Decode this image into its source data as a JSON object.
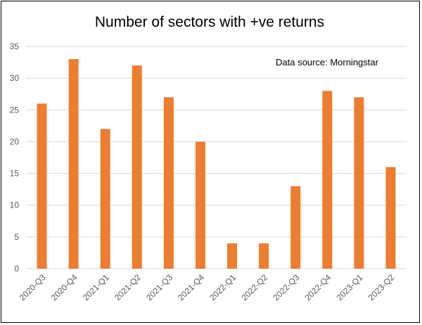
{
  "chart_data": {
    "type": "bar",
    "title": "Number of sectors with +ve returns",
    "annotation": "Data source: Morningstar",
    "xlabel": "",
    "ylabel": "",
    "categories": [
      "2020-Q3",
      "2020-Q4",
      "2021-Q1",
      "2021-Q2",
      "2021-Q3",
      "2021-Q4",
      "2022-Q1",
      "2022-Q2",
      "2022-Q3",
      "2022-Q4",
      "2023-Q1",
      "2023-Q2"
    ],
    "values": [
      26,
      33,
      22,
      32,
      27,
      20,
      4,
      4,
      13,
      28,
      27,
      16
    ],
    "ylim": [
      0,
      35
    ],
    "yticks": [
      "0",
      "5",
      "10",
      "15",
      "20",
      "25",
      "30",
      "35"
    ],
    "grid": true,
    "legend": "none",
    "bar_color": "#ed7d31"
  }
}
